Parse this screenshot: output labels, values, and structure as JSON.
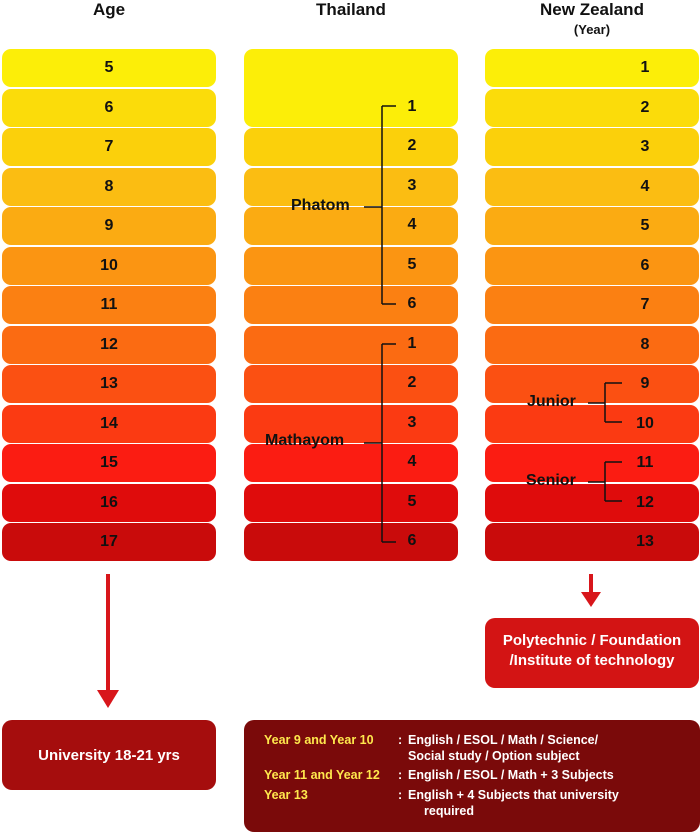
{
  "headers": {
    "age": "Age",
    "thailand": "Thailand",
    "new_zealand": "New Zealand",
    "nz_sub": "(Year)"
  },
  "colors": [
    "#fcee08",
    "#fbdc0a",
    "#fbd00b",
    "#fbbd12",
    "#fbab12",
    "#fb9512",
    "#fb8012",
    "#fb6b12",
    "#fb5012",
    "#fb3a12",
    "#fb1c12",
    "#df0c0c",
    "#c90b0b"
  ],
  "ages": [
    "5",
    "6",
    "7",
    "8",
    "9",
    "10",
    "11",
    "12",
    "13",
    "14",
    "15",
    "16",
    "17"
  ],
  "thailand": {
    "phatom_label": "Phatom",
    "phatom_years": [
      "1",
      "2",
      "3",
      "4",
      "5",
      "6"
    ],
    "mathayom_label": "Mathayom",
    "mathayom_years": [
      "1",
      "2",
      "3",
      "4",
      "5",
      "6"
    ]
  },
  "nz": {
    "years": [
      "1",
      "2",
      "3",
      "4",
      "5",
      "6",
      "7",
      "8",
      "9",
      "10",
      "11",
      "12",
      "13"
    ],
    "junior_label": "Junior",
    "senior_label": "Senior"
  },
  "after_school": {
    "nz_line1": "Polytechnic / Foundation",
    "nz_line2": "/Institute of technology",
    "university": "University 18-21 yrs"
  },
  "subjects": [
    {
      "key": "Year 9 and Year 10",
      "line1": "English / ESOL / Math / Science/",
      "line2": "Social study / Option subject"
    },
    {
      "key": "Year 11 and Year 12",
      "line1": "English / ESOL / Math + 3 Subjects",
      "line2": ""
    },
    {
      "key": "Year 13",
      "line1": "English + 4 Subjects that university",
      "line2": "required"
    }
  ],
  "colon": ":"
}
